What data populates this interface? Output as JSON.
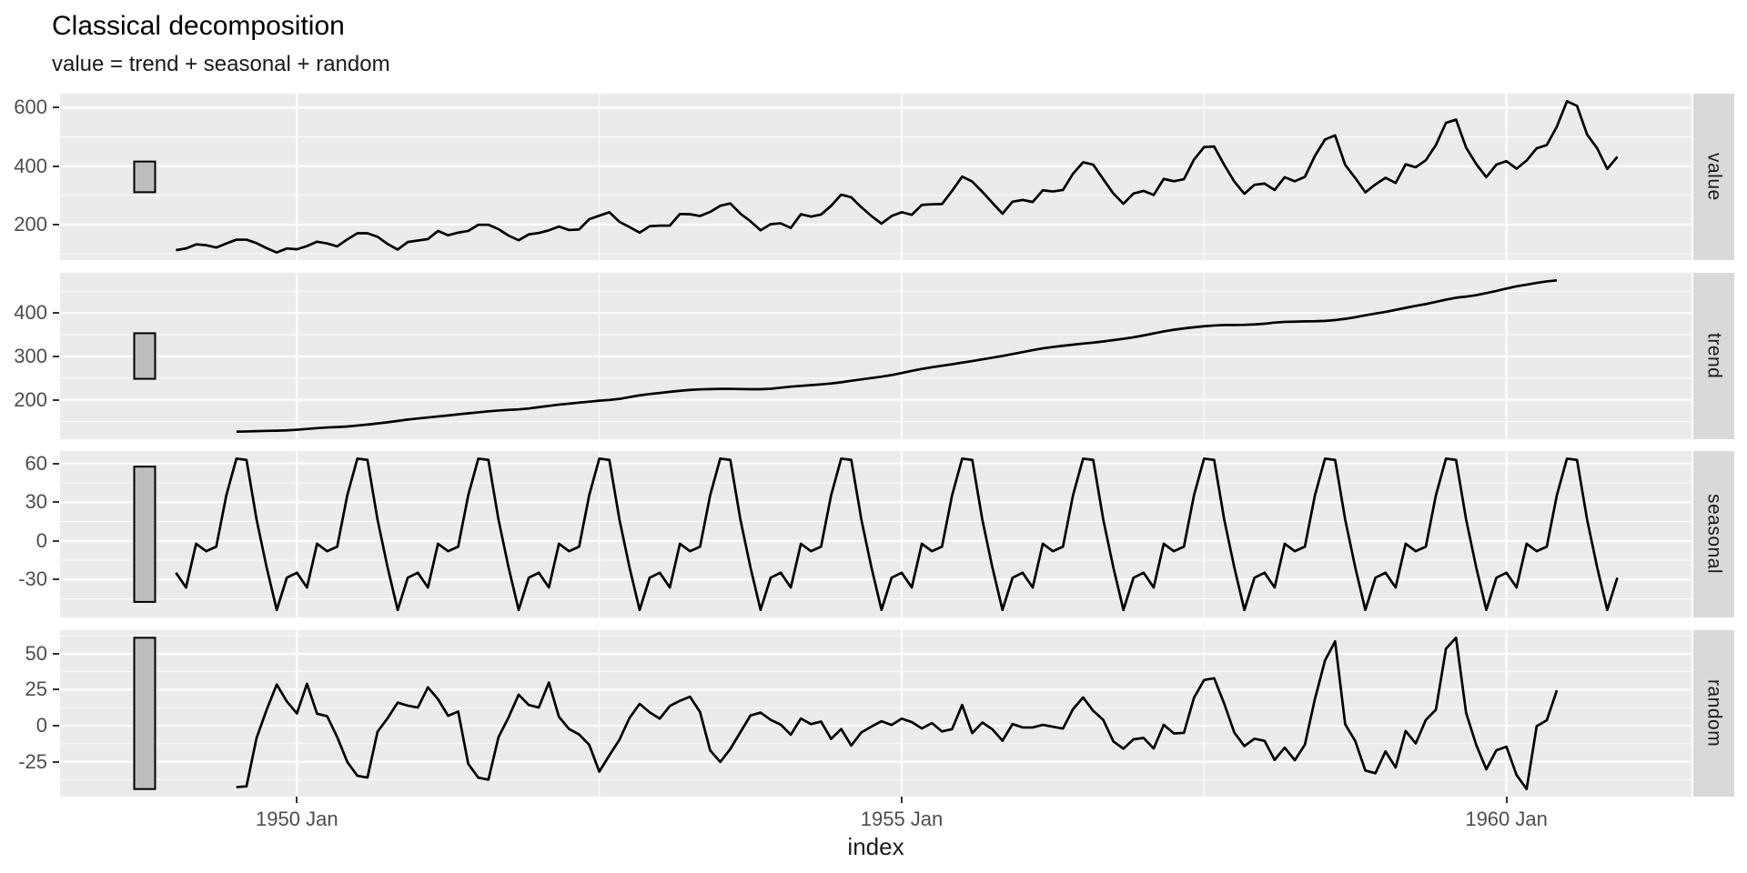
{
  "title": "Classical decomposition",
  "subtitle": "value = trend + seasonal + random",
  "chart_data": {
    "type": "line",
    "title": "Classical decomposition",
    "subtitle": "value = trend + seasonal + random",
    "xlabel": "index",
    "x_start": 1949.0,
    "frequency": 12,
    "x_axis": {
      "label": "index",
      "ticks": [
        {
          "value": 1950,
          "label": "1950 Jan"
        },
        {
          "value": 1955,
          "label": "1955 Jan"
        },
        {
          "value": 1960,
          "label": "1960 Jan"
        }
      ]
    },
    "panels": [
      {
        "name": "value",
        "y_ticks": [
          200,
          400,
          600
        ]
      },
      {
        "name": "trend",
        "y_ticks": [
          200,
          300,
          400
        ]
      },
      {
        "name": "seasonal",
        "y_ticks": [
          -30,
          0,
          30,
          60
        ]
      },
      {
        "name": "random",
        "y_ticks": [
          -25,
          0,
          25,
          50
        ]
      }
    ],
    "series": {
      "value": [
        112,
        118,
        132,
        129,
        121,
        135,
        148,
        148,
        136,
        119,
        104,
        118,
        115,
        126,
        141,
        135,
        125,
        149,
        170,
        170,
        158,
        133,
        114,
        140,
        145,
        150,
        178,
        163,
        172,
        178,
        199,
        199,
        184,
        162,
        146,
        166,
        171,
        180,
        193,
        181,
        183,
        218,
        230,
        242,
        209,
        191,
        172,
        194,
        196,
        196,
        236,
        235,
        229,
        243,
        264,
        272,
        237,
        211,
        180,
        201,
        204,
        188,
        235,
        227,
        234,
        264,
        302,
        293,
        259,
        229,
        203,
        229,
        242,
        233,
        267,
        269,
        270,
        315,
        364,
        347,
        312,
        274,
        237,
        278,
        284,
        277,
        317,
        313,
        318,
        374,
        413,
        405,
        355,
        306,
        271,
        306,
        315,
        301,
        356,
        348,
        355,
        422,
        465,
        467,
        404,
        347,
        305,
        336,
        340,
        318,
        362,
        348,
        363,
        435,
        491,
        505,
        404,
        359,
        310,
        337,
        360,
        342,
        406,
        396,
        420,
        472,
        548,
        559,
        463,
        407,
        362,
        405,
        417,
        391,
        419,
        461,
        472,
        535,
        622,
        606,
        508,
        461,
        390,
        432
      ],
      "seasonal_figure": [
        -24.748737,
        -36.188131,
        -2.241162,
        -8.036616,
        -4.506313,
        35.402778,
        63.830808,
        62.823232,
        16.520202,
        -20.642677,
        -53.593434,
        -28.619949
      ],
      "trend_method": "centered 12-month moving average (NA for first/last 6 months)",
      "random_method": "value - trend - seasonal"
    },
    "scale_bar": {
      "x0": 1948.655,
      "x1": 1948.828,
      "centered": true,
      "height_rule": "same data-unit height in every panel = range of random component"
    },
    "colors": {
      "panel_bg": "#EBEBEB",
      "grid": "#FFFFFF",
      "strip_bg": "#D9D9D9",
      "line": "#000000",
      "bar_fill": "#BDBDBD",
      "bar_stroke": "#000000",
      "axis_text": "#4D4D4D",
      "tick_mark": "#333333",
      "text": "#1A1A1A"
    },
    "legend": "none",
    "grid": "major and minor, white on grey panels"
  }
}
